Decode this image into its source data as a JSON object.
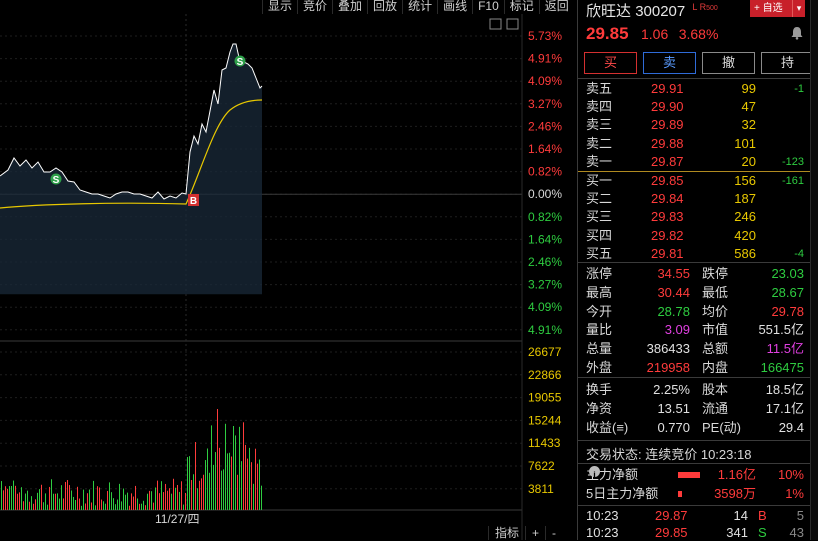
{
  "toolbar": {
    "items": [
      "显示",
      "竞价",
      "叠加",
      "回放",
      "统计",
      "画线",
      "F10",
      "标记",
      "返回"
    ]
  },
  "chart": {
    "pct_labels": [
      "5.73%",
      "4.91%",
      "4.09%",
      "3.27%",
      "2.46%",
      "1.64%",
      "0.82%",
      "0.00%",
      "0.82%",
      "1.64%",
      "2.46%",
      "3.27%",
      "4.09%",
      "4.91%"
    ],
    "vol_labels": [
      "26677",
      "22866",
      "19055",
      "15244",
      "11433",
      "7622",
      "3811"
    ],
    "date_label": "11/27/四",
    "markers": {
      "s": "S",
      "b": "B"
    },
    "colors": {
      "up": "#ff3b3b",
      "down": "#2ecc40",
      "price_line": "#ffffff",
      "avg_line": "#e8c800",
      "fill": "#1a2a3a"
    }
  },
  "quote": {
    "name": "欣旺达",
    "code": "300207",
    "tags": "L R",
    "tags_sub": "500",
    "fav_label": "+ 自选",
    "price": "29.85",
    "change": "1.06",
    "change_pct": "3.68%",
    "buttons": {
      "buy": "买",
      "sell": "卖",
      "cancel": "撤",
      "hold": "持"
    },
    "asks": [
      {
        "label": "卖五",
        "price": "29.91",
        "vol": "99",
        "chg": "-1"
      },
      {
        "label": "卖四",
        "price": "29.90",
        "vol": "47",
        "chg": ""
      },
      {
        "label": "卖三",
        "price": "29.89",
        "vol": "32",
        "chg": ""
      },
      {
        "label": "卖二",
        "price": "29.88",
        "vol": "101",
        "chg": ""
      },
      {
        "label": "卖一",
        "price": "29.87",
        "vol": "20",
        "chg": "-123"
      }
    ],
    "bids": [
      {
        "label": "买一",
        "price": "29.85",
        "vol": "156",
        "chg": "-161"
      },
      {
        "label": "买二",
        "price": "29.84",
        "vol": "187",
        "chg": ""
      },
      {
        "label": "买三",
        "price": "29.83",
        "vol": "246",
        "chg": ""
      },
      {
        "label": "买四",
        "price": "29.82",
        "vol": "420",
        "chg": ""
      },
      {
        "label": "买五",
        "price": "29.81",
        "vol": "586",
        "chg": "-4"
      }
    ],
    "stats1": [
      {
        "l1": "涨停",
        "v1": "34.55",
        "c1": "red",
        "l2": "跌停",
        "v2": "23.03",
        "c2": "green"
      },
      {
        "l1": "最高",
        "v1": "30.44",
        "c1": "red",
        "l2": "最低",
        "v2": "28.67",
        "c2": "green"
      },
      {
        "l1": "今开",
        "v1": "28.78",
        "c1": "green",
        "l2": "均价",
        "v2": "29.78",
        "c2": "red"
      },
      {
        "l1": "量比",
        "v1": "3.09",
        "c1": "magenta",
        "l2": "市值",
        "v2": "551.5亿",
        "c2": "white"
      },
      {
        "l1": "总量",
        "v1": "386433",
        "c1": "white",
        "l2": "总额",
        "v2": "11.5亿",
        "c2": "magenta"
      },
      {
        "l1": "外盘",
        "v1": "219958",
        "c1": "red",
        "l2": "内盘",
        "v2": "166475",
        "c2": "green"
      }
    ],
    "stats2": [
      {
        "l1": "换手",
        "v1": "2.25%",
        "c1": "white",
        "l2": "股本",
        "v2": "18.5亿",
        "c2": "white"
      },
      {
        "l1": "净资",
        "v1": "13.51",
        "c1": "white",
        "l2": "流通",
        "v2": "17.1亿",
        "c2": "white"
      },
      {
        "l1": "收益(≡)",
        "v1": "0.770",
        "c1": "white",
        "l2": "PE(动)",
        "v2": "29.4",
        "c2": "white"
      }
    ],
    "status_label": "交易状态: 连续竞价 10:23:18",
    "flow": [
      {
        "label": "主力净额",
        "info": "i",
        "bar_pct": 0.8,
        "value": "1.16亿",
        "pct": "10%"
      },
      {
        "label": "5日主力净额",
        "info": "",
        "bar_pct": 0.15,
        "value": "3598万",
        "pct": "1%"
      }
    ],
    "ticks": [
      {
        "time": "10:23",
        "price": "29.87",
        "vol": "14",
        "side": "B",
        "num": "5"
      },
      {
        "time": "10:23",
        "price": "29.85",
        "vol": "341",
        "side": "S",
        "num": "43"
      }
    ]
  },
  "bottom_tabs": [
    "指标",
    "+",
    "-"
  ]
}
